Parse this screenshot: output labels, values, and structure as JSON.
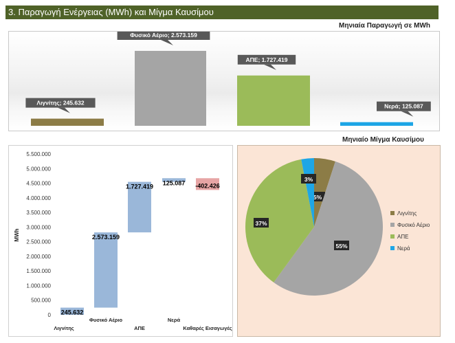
{
  "header": {
    "title": "3. Παραγωγή Ενέργειας (MWh) και Μίγμα Καυσίμου"
  },
  "colors": {
    "header": "#4f6228",
    "lignite": "#8c7c46",
    "gas": "#a5a5a5",
    "res": "#9bbb59",
    "hydro": "#1ea6e6",
    "waterfall": "#95b3d7",
    "imports": "#e6a0a0",
    "pie_bg": "#fbe5d6"
  },
  "chart_data": [
    {
      "type": "bar",
      "title": "Μηνιαία Παραγωγή σε MWh",
      "categories": [
        "Λιγνίτης",
        "Φυσικό Αέριο",
        "ΑΠΕ",
        "Νερά"
      ],
      "values": [
        245632,
        2573159,
        1727419,
        125087
      ],
      "data_labels": [
        "Λιγνίτης; 245.632",
        "Φυσικό Αέριο; 2.573.159",
        "ΑΠΕ; 1.727.419",
        "Νερά; 125.087"
      ],
      "ylim": [
        0,
        2573159
      ],
      "grid": false,
      "legend": "none"
    },
    {
      "type": "bar",
      "subtype": "waterfall",
      "categories": [
        "Λιγνίτης",
        "Φυσικό Αέριο",
        "ΑΠΕ",
        "Νερά",
        "Καθαρές Εισαγωγές"
      ],
      "values": [
        245632,
        2573159,
        1727419,
        125087,
        -402426
      ],
      "data_labels": [
        "245.632",
        "2.573.159",
        "1.727.419",
        "125.087",
        "-402.426"
      ],
      "ylabel": "MWh",
      "ylim": [
        0,
        5500000
      ],
      "yticks": [
        "0",
        "500.000",
        "1.000.000",
        "1.500.000",
        "2.000.000",
        "2.500.000",
        "3.000.000",
        "3.500.000",
        "4.000.000",
        "4.500.000",
        "5.000.000",
        "5.500.000"
      ],
      "grid": false,
      "legend": "none"
    },
    {
      "type": "pie",
      "title": "Μηνιαίο Μίγμα Καυσίμου",
      "labels": [
        "Λιγνίτης",
        "Φυσικό Αέριο",
        "ΑΠΕ",
        "Νερά"
      ],
      "values": [
        5,
        55,
        37,
        3
      ],
      "data_labels": [
        "5%",
        "55%",
        "37%",
        "3%"
      ],
      "legend": "right"
    }
  ]
}
